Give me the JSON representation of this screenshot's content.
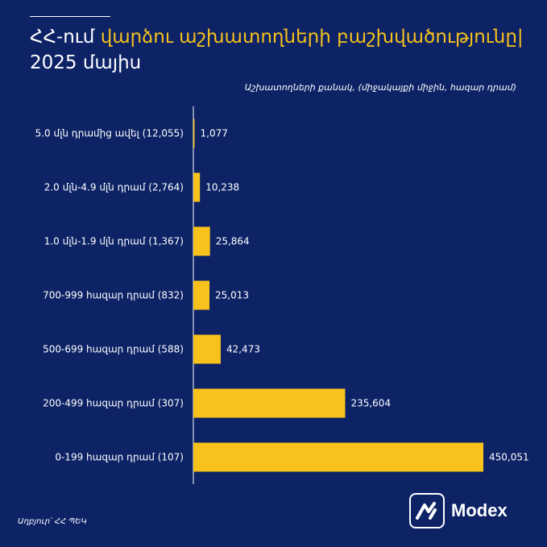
{
  "header": {
    "title_line1_prefix": "ՀՀ-ում",
    "title_line1_highlight": "վարձու աշխատողների բաշխվածությունը|",
    "title_line2": "2025 մայիս"
  },
  "subtitle": "Աշխատողների քանակ, (միջակայքի միջին, հազար դրամ)",
  "source": "Աղբյուր՝ ՀՀ ՊԵԿ",
  "logo": {
    "text": "Modex",
    "icon": "modex-logo-icon"
  },
  "colors": {
    "background": "#0d2366",
    "bar": "#f7c21b",
    "highlight": "#f7c21b"
  },
  "chart_data": {
    "type": "bar",
    "orientation": "horizontal",
    "categories": [
      "5.0 մլն դրամից ավել (12,055)",
      "2.0 մլն-4.9 մլն դրամ (2,764)",
      "1.0 մլն-1.9 մլն դրամ  (1,367)",
      "700-999 հազար դրամ  (832)",
      "500-699 հազար դրամ  (588)",
      "200-499 հազար դրամ  (307)",
      "0-199 հազար դրամ  (107)"
    ],
    "values": [
      1077,
      10238,
      25864,
      25013,
      42473,
      235604,
      450051
    ],
    "value_labels": [
      "1,077",
      "10,238",
      "25,864",
      "25,013",
      "42,473",
      "235,604",
      "450,051"
    ],
    "title": "",
    "xlabel": "",
    "ylabel": "",
    "xlim": [
      0,
      450051
    ],
    "grid": false,
    "legend": "none"
  }
}
